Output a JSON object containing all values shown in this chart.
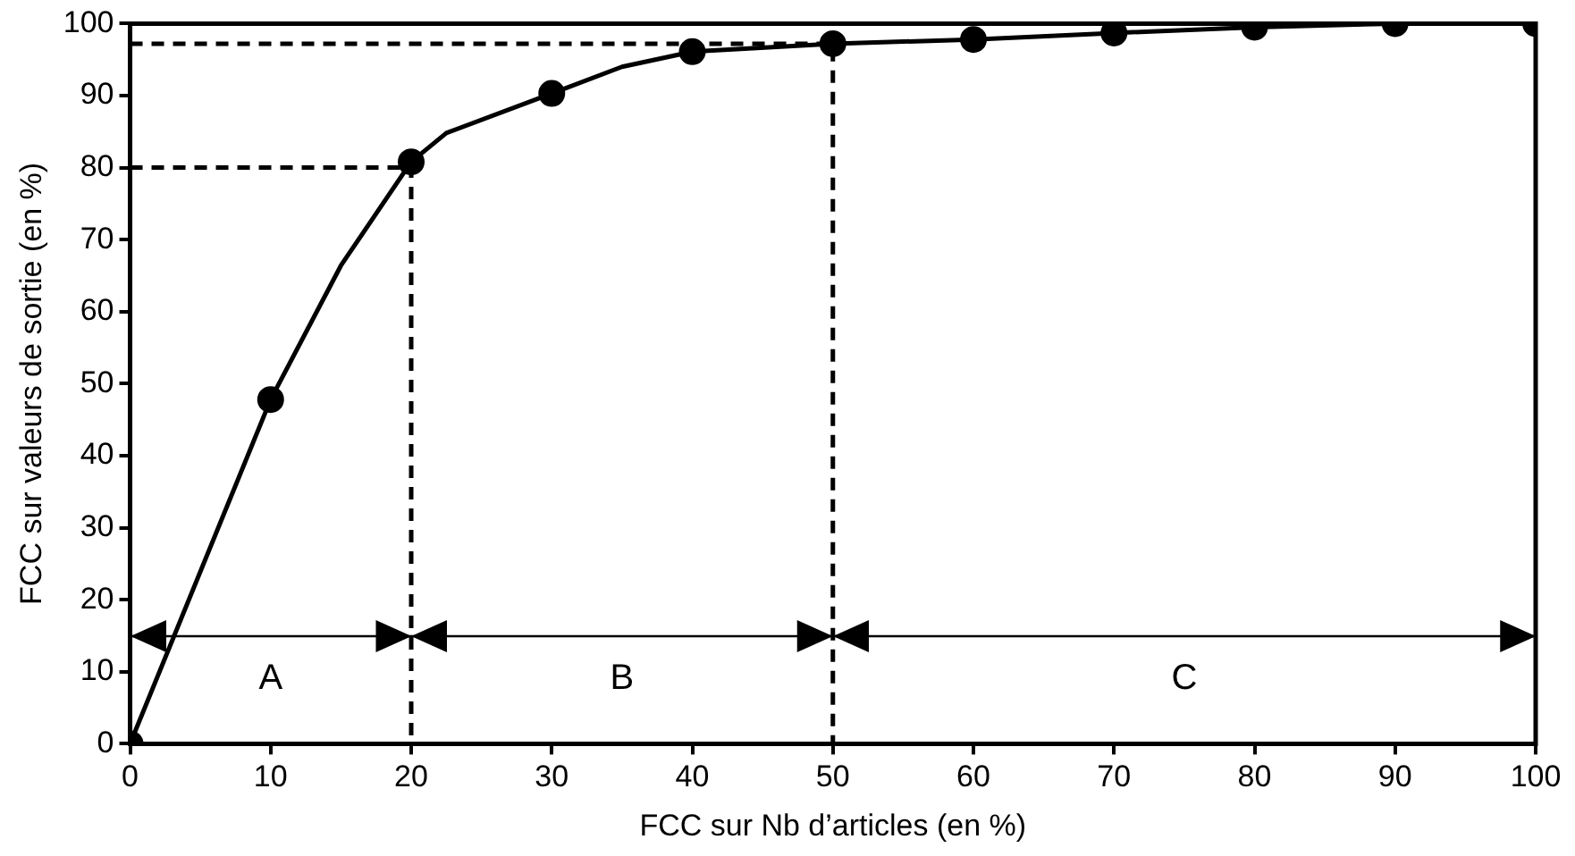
{
  "chart_data": {
    "type": "line",
    "xlabel": "FCC sur Nb d’articles (en %)",
    "ylabel": "FCC sur valeurs de sortie (en %)",
    "xlim": [
      0,
      100
    ],
    "xticks": [
      0,
      10,
      20,
      30,
      40,
      50,
      60,
      70,
      80,
      90,
      100
    ],
    "ylim": [
      0,
      100
    ],
    "yticks": [
      0,
      10,
      20,
      30,
      40,
      50,
      60,
      70,
      80,
      90,
      100
    ],
    "grid": false,
    "legend": false,
    "series": [
      {
        "type": "line",
        "color": "#000000",
        "marker": "none",
        "line_style": "solid",
        "x": [
          0,
          10,
          15,
          20,
          22.5,
          30,
          35,
          40,
          50,
          60,
          70,
          80,
          90,
          100
        ],
        "values": [
          0,
          47.8,
          66.4,
          80.8,
          84.8,
          90.3,
          94,
          96.1,
          97.2,
          97.8,
          98.7,
          99.5,
          100,
          100
        ]
      },
      {
        "type": "scatter",
        "color": "#000000",
        "marker": "circle",
        "x": [
          0,
          10,
          20,
          30,
          40,
          50,
          60,
          70,
          80,
          90,
          100
        ],
        "values": [
          0,
          47.8,
          80.8,
          90.3,
          96.1,
          97.2,
          97.8,
          98.7,
          99.5,
          100,
          100
        ]
      },
      {
        "type": "line",
        "color": "#000000",
        "marker": "none",
        "line_style": "dashed",
        "x": [
          0,
          20,
          20
        ],
        "values": [
          80,
          80,
          0
        ]
      },
      {
        "type": "line",
        "color": "#000000",
        "marker": "none",
        "line_style": "dashed",
        "x": [
          0,
          50,
          50
        ],
        "values": [
          97.2,
          97.2,
          0
        ]
      }
    ],
    "annotations": [
      "A",
      "B",
      "C"
    ]
  }
}
